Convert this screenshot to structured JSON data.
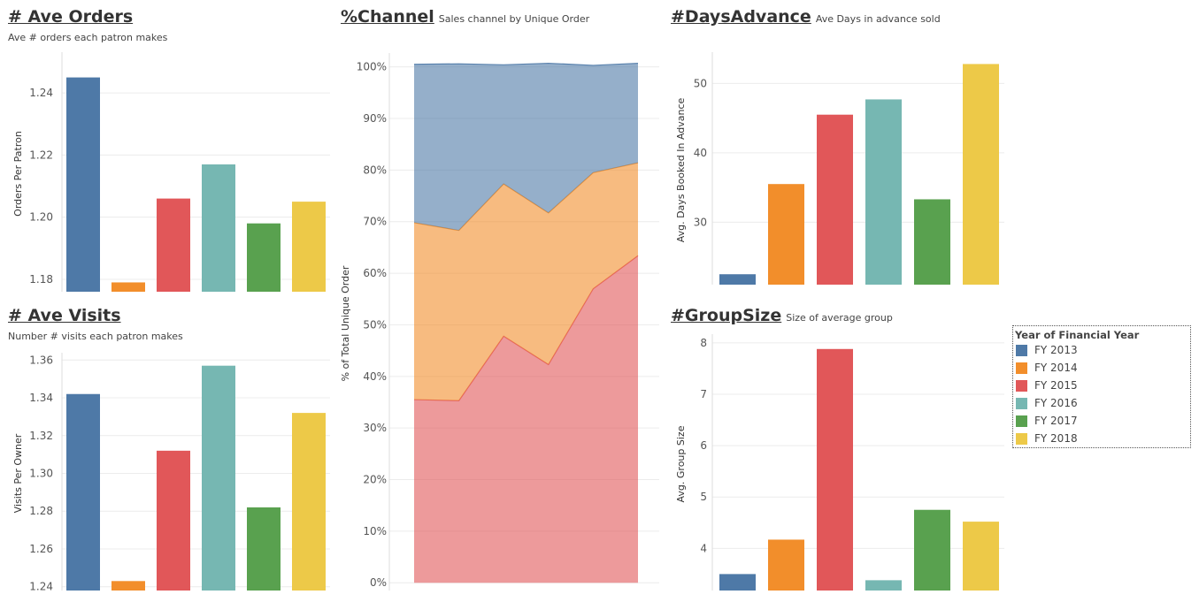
{
  "panels": {
    "ave_orders": {
      "title": "# Ave Orders",
      "subtitle": "Ave # orders each patron makes"
    },
    "ave_visits": {
      "title": "# Ave Visits",
      "subtitle": "Number # visits each patron makes"
    },
    "channel": {
      "title": "%Channel",
      "subtitle": "Sales channel by Unique Order"
    },
    "days_advance": {
      "title": "#DaysAdvance",
      "subtitle": "Ave Days in advance sold"
    },
    "group_size": {
      "title": "#GroupSize",
      "subtitle": "Size of average group"
    }
  },
  "legend": {
    "title": "Year of Financial Year",
    "items": [
      {
        "label": "FY 2013",
        "color": "#4e79a7"
      },
      {
        "label": "FY 2014",
        "color": "#f28e2b"
      },
      {
        "label": "FY 2015",
        "color": "#e15759"
      },
      {
        "label": "FY 2016",
        "color": "#76b7b2"
      },
      {
        "label": "FY 2017",
        "color": "#59a14f"
      },
      {
        "label": "FY 2018",
        "color": "#edc948"
      }
    ]
  },
  "chart_data": [
    {
      "id": "ave_orders",
      "type": "bar",
      "title": "# Ave Orders",
      "ylabel": "Orders Per Patron",
      "categories": [
        "FY 2013",
        "FY 2014",
        "FY 2015",
        "FY 2016",
        "FY 2017",
        "FY 2018"
      ],
      "values": [
        1.245,
        1.179,
        1.206,
        1.217,
        1.198,
        1.205
      ],
      "ylim": [
        1.176,
        1.252
      ],
      "yticks": [
        1.18,
        1.2,
        1.22,
        1.24
      ],
      "ytick_labels": [
        "1.18",
        "1.20",
        "1.22",
        "1.24"
      ]
    },
    {
      "id": "ave_visits",
      "type": "bar",
      "title": "# Ave Visits",
      "ylabel": "Visits Per Owner",
      "categories": [
        "FY 2013",
        "FY 2014",
        "FY 2015",
        "FY 2016",
        "FY 2017",
        "FY 2018"
      ],
      "values": [
        1.342,
        1.243,
        1.312,
        1.357,
        1.282,
        1.332
      ],
      "ylim": [
        1.238,
        1.362
      ],
      "yticks": [
        1.24,
        1.26,
        1.28,
        1.3,
        1.32,
        1.34,
        1.36
      ],
      "ytick_labels": [
        "1.24",
        "1.26",
        "1.28",
        "1.30",
        "1.32",
        "1.34",
        "1.36"
      ]
    },
    {
      "id": "channel",
      "type": "area",
      "title": "%Channel",
      "ylabel": "% of Total Unique Order",
      "x": [
        "FY 2013",
        "FY 2014",
        "FY 2015",
        "FY 2016",
        "FY 2017",
        "FY 2018"
      ],
      "series": [
        {
          "values": [
            35.5,
            35.3,
            47.8,
            42.3,
            57.0,
            63.4
          ],
          "color": "#e15759"
        },
        {
          "values": [
            34.3,
            33.0,
            29.5,
            29.4,
            22.5,
            18.0
          ],
          "color": "#f28e2b"
        },
        {
          "values": [
            30.7,
            32.3,
            23.1,
            29.0,
            20.8,
            19.3
          ],
          "color": "#4e79a7"
        }
      ],
      "ylim": [
        -1.5,
        102
      ],
      "yticks": [
        0,
        10,
        20,
        30,
        40,
        50,
        60,
        70,
        80,
        90,
        100
      ],
      "ytick_labels": [
        "0%",
        "10%",
        "20%",
        "30%",
        "40%",
        "50%",
        "60%",
        "70%",
        "80%",
        "90%",
        "100%"
      ]
    },
    {
      "id": "days_advance",
      "type": "bar",
      "title": "#DaysAdvance",
      "ylabel": "Avg. Days Booked In Advance",
      "categories": [
        "FY 2013",
        "FY 2014",
        "FY 2015",
        "FY 2016",
        "FY 2017",
        "FY 2018"
      ],
      "values": [
        22.5,
        35.5,
        45.5,
        47.7,
        33.3,
        52.8
      ],
      "ylim": [
        21,
        54
      ],
      "yticks": [
        30,
        40,
        50
      ],
      "ytick_labels": [
        "30",
        "40",
        "50"
      ]
    },
    {
      "id": "group_size",
      "type": "bar",
      "title": "#GroupSize",
      "ylabel": "Avg. Group Size",
      "categories": [
        "FY 2013",
        "FY 2014",
        "FY 2015",
        "FY 2016",
        "FY 2017",
        "FY 2018"
      ],
      "values": [
        3.5,
        4.17,
        7.88,
        3.38,
        4.75,
        4.52
      ],
      "ylim": [
        3.18,
        8.1
      ],
      "yticks": [
        4,
        5,
        6,
        7,
        8
      ],
      "ytick_labels": [
        "4",
        "5",
        "6",
        "7",
        "8"
      ]
    }
  ]
}
